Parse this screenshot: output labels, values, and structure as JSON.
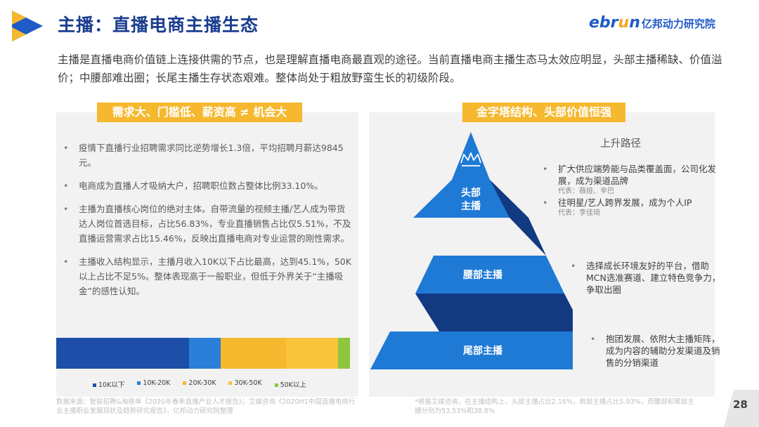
{
  "title": "主播：直播电商主播生态",
  "brand": {
    "name_a": "ebr",
    "name_b": "u",
    "name_c": "n",
    "sub": "亿邦动力研究院"
  },
  "intro": "主播是直播电商价值链上连接供需的节点，也是理解直播电商最直观的途径。当前直播电商主播生态马太效应明显，头部主播稀缺、价值溢价；中腰部难出圈；长尾主播生存状态艰难。整体尚处于粗放野蛮生长的初级阶段。",
  "left": {
    "badge": "需求大、门槛低、薪资高 ≠ 机会大",
    "bullets": [
      "疫情下直播行业招聘需求同比逆势增长1.3倍，平均招聘月薪达9845元。",
      "电商成为直播人才吸纳大户，招聘职位数占整体比例33.10%。",
      "主播为直播核心岗位的绝对主体。自带流量的视频主播/艺人成为带货达人岗位首选目标，占比56.83%，专业直播销售占比仅5.51%，不及直播运营需求占比15.46%，反映出直播电商对专业运营的刚性需求。",
      "主播收入结构显示，主播月收入10K以下占比最高，达到45.1%，50K以上占比不足5%。整体表现高于一般职业，但低于外界关于“主播吸金”的感性认知。"
    ],
    "bullet_mark": "•",
    "income_chart": {
      "type": "bar",
      "categories": [
        "10K以下",
        "10K-20K",
        "20K-30K",
        "30K-50K",
        "50K以上"
      ],
      "values": [
        45.1,
        11.0,
        22.2,
        17.7,
        4.0
      ],
      "colors": [
        "#1e4fa8",
        "#2b7fd8",
        "#f5b82e",
        "#f9c33a",
        "#8dc63f"
      ]
    },
    "source": "数据来源：智联招聘&淘榜单《2020年春季直播产业人才报告》；艾媒咨询《2020H1中国直播电商行业主播职业发展现状及趋势研究报告》，亿邦动力研究院整理"
  },
  "right": {
    "badge": "金字塔结构、头部价值恒强",
    "path_title": "上升路径",
    "pyramid": {
      "head": "头部\n主播",
      "mid": "腰部主播",
      "tail": "尾部主播",
      "crown_icon": "crown-icon"
    },
    "notes": {
      "top1": "扩大供应端势能与品类覆盖面，公司化发展，成为渠道品牌",
      "top1_rep": "代表：薇娅、辛巴",
      "top2": "往明星/艺人跨界发展，成为个人IP",
      "top2_rep": "代表：李佳琦",
      "mid": "选择成长环境友好的平台，借助MCN选准赛道、建立特色竞争力，争取出圈",
      "bot": "抱团发展、依附大主播矩阵，成为内容的辅助分发渠道及销售的分销渠道"
    },
    "footnote": "*根据艾媒咨询，在主播结构上，头部主播占比2.16%，肩部主播占比5.93%，而腰部和尾部主播分别为53.53%和38.8%"
  },
  "page_number": "28",
  "colors": {
    "title": "#1a3d8f",
    "badge": "#f5b82e",
    "pyramid_light": "#1f7ad6",
    "pyramid_dark": "#123a80"
  }
}
